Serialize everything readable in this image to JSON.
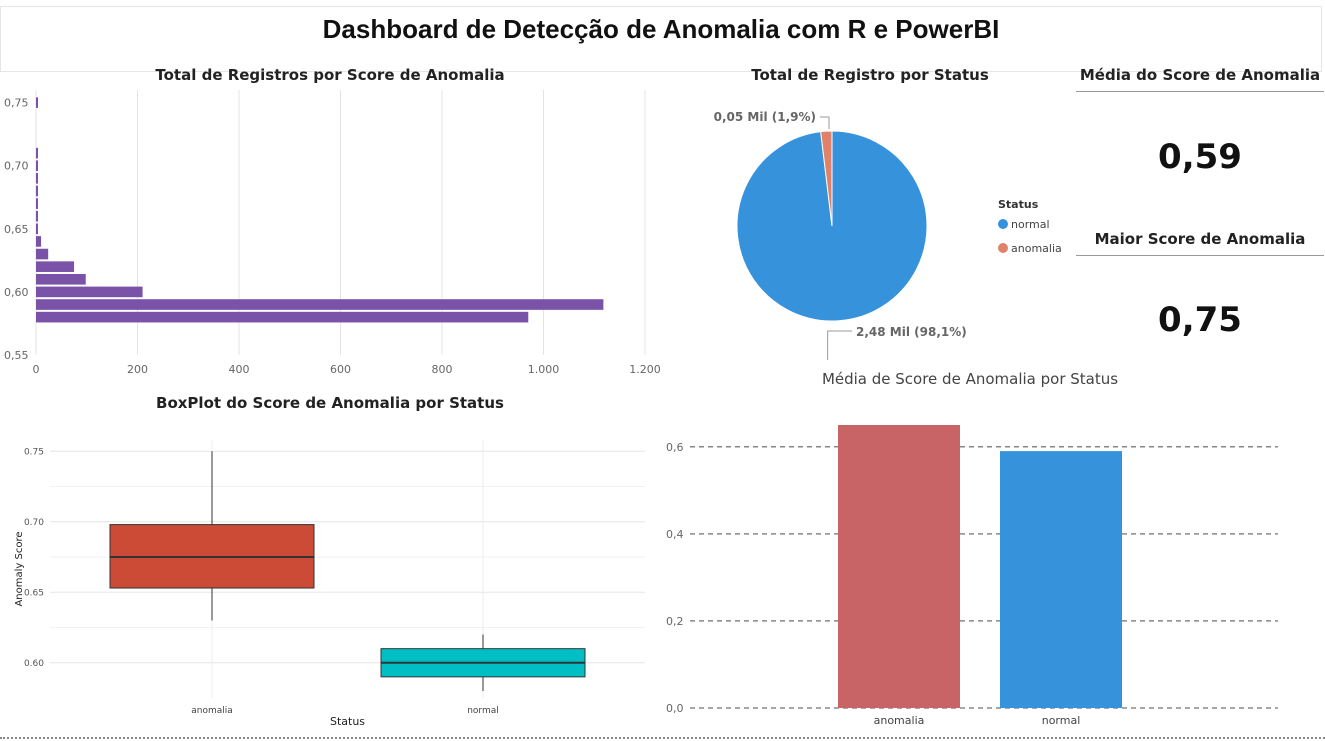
{
  "page": {
    "title": "Dashboard de Detecção de Anomalia com R e PowerBI"
  },
  "kpis": {
    "avg": {
      "label": "Média do Score de Anomalia",
      "value": "0,59"
    },
    "max": {
      "label": "Maior Score de Anomalia",
      "value": "0,75"
    }
  },
  "chart_data": [
    {
      "id": "hist",
      "type": "bar",
      "orientation": "horizontal",
      "title": "Total de Registros por Score de Anomalia",
      "xlabel": "",
      "ylabel": "",
      "color": "#7a52a8",
      "xlim": [
        0,
        1200
      ],
      "ylim": [
        0.55,
        0.76
      ],
      "x_ticks": [
        "0",
        "200",
        "400",
        "600",
        "800",
        "1.000",
        "1.200"
      ],
      "y_ticks": [
        "0,55",
        "0,60",
        "0,65",
        "0,70",
        "0,75"
      ],
      "bins": [
        {
          "score": 0.58,
          "count": 970
        },
        {
          "score": 0.59,
          "count": 1118
        },
        {
          "score": 0.6,
          "count": 210
        },
        {
          "score": 0.61,
          "count": 98
        },
        {
          "score": 0.62,
          "count": 75
        },
        {
          "score": 0.63,
          "count": 24
        },
        {
          "score": 0.64,
          "count": 10
        },
        {
          "score": 0.65,
          "count": 3
        },
        {
          "score": 0.66,
          "count": 2
        },
        {
          "score": 0.67,
          "count": 2
        },
        {
          "score": 0.68,
          "count": 2
        },
        {
          "score": 0.69,
          "count": 2
        },
        {
          "score": 0.7,
          "count": 2
        },
        {
          "score": 0.71,
          "count": 2
        },
        {
          "score": 0.75,
          "count": 2
        }
      ],
      "grid": true
    },
    {
      "id": "pie",
      "type": "pie",
      "title": "Total de Registro por Status",
      "legend_title": "Status",
      "legend_position": "right",
      "slices": [
        {
          "name": "normal",
          "value": 2.48,
          "percent": 98.1,
          "label": "2,48 Mil (98,1%)",
          "color": "#3792dc"
        },
        {
          "name": "anomalia",
          "value": 0.05,
          "percent": 1.9,
          "label": "0,05 Mil (1,9%)",
          "color": "#e0826a"
        }
      ]
    },
    {
      "id": "boxplot",
      "type": "boxplot",
      "title": "BoxPlot do Score de Anomalia por Status",
      "xlabel": "Status",
      "ylabel": "Anomaly Score",
      "ylim": [
        0.575,
        0.758
      ],
      "y_ticks": [
        "0.60",
        "0.65",
        "0.70",
        "0.75"
      ],
      "grid": true,
      "groups": [
        {
          "name": "anomalia",
          "min": 0.63,
          "q1": 0.653,
          "median": 0.675,
          "q3": 0.698,
          "max": 0.75,
          "color": "#cc4b37"
        },
        {
          "name": "normal",
          "min": 0.58,
          "q1": 0.59,
          "median": 0.6,
          "q3": 0.61,
          "max": 0.62,
          "color": "#00bfc4"
        }
      ]
    },
    {
      "id": "avgbar",
      "type": "bar",
      "title": "Média de Score de Anomalia por Status",
      "xlabel": "",
      "ylabel": "",
      "categories": [
        "anomalia",
        "normal"
      ],
      "values": [
        0.65,
        0.59
      ],
      "colors": [
        "#c96466",
        "#3792dc"
      ],
      "ylim": [
        0,
        0.65
      ],
      "y_ticks": [
        "0,0",
        "0,2",
        "0,4",
        "0,6"
      ],
      "grid": "dashed"
    }
  ]
}
